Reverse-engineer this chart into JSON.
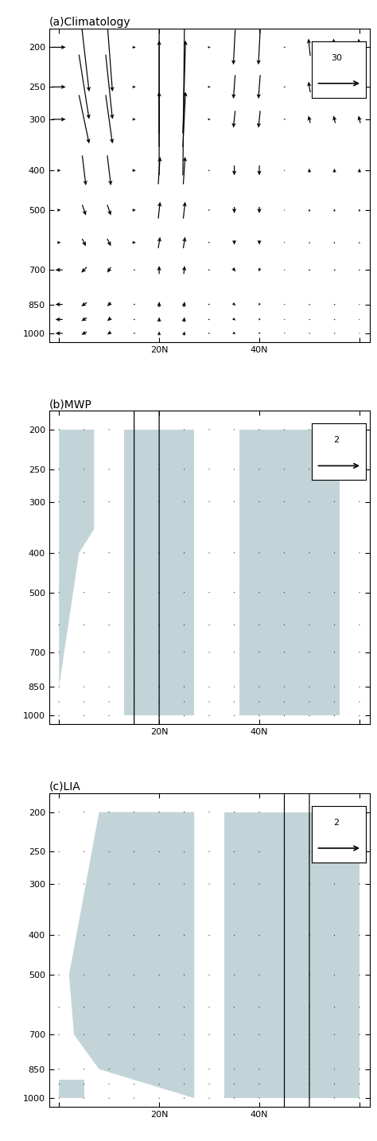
{
  "title_a": "(a)Climatology",
  "title_b": "(b)MWP",
  "title_c": "(c)LIA",
  "ylabel_ticks": [
    200,
    250,
    300,
    400,
    500,
    700,
    850,
    1000
  ],
  "xtick_vals": [
    0,
    20,
    40,
    60
  ],
  "xtick_labels": [
    "",
    "20N",
    "40N",
    ""
  ],
  "ref_scale_a": 30,
  "ref_scale_bc": 2,
  "shading_color": "#b8cdd1",
  "lats": [
    0,
    5,
    10,
    15,
    20,
    25,
    30,
    35,
    40,
    45,
    50,
    55,
    60
  ],
  "plevs": [
    200,
    250,
    300,
    400,
    500,
    600,
    700,
    850,
    925,
    1000
  ]
}
